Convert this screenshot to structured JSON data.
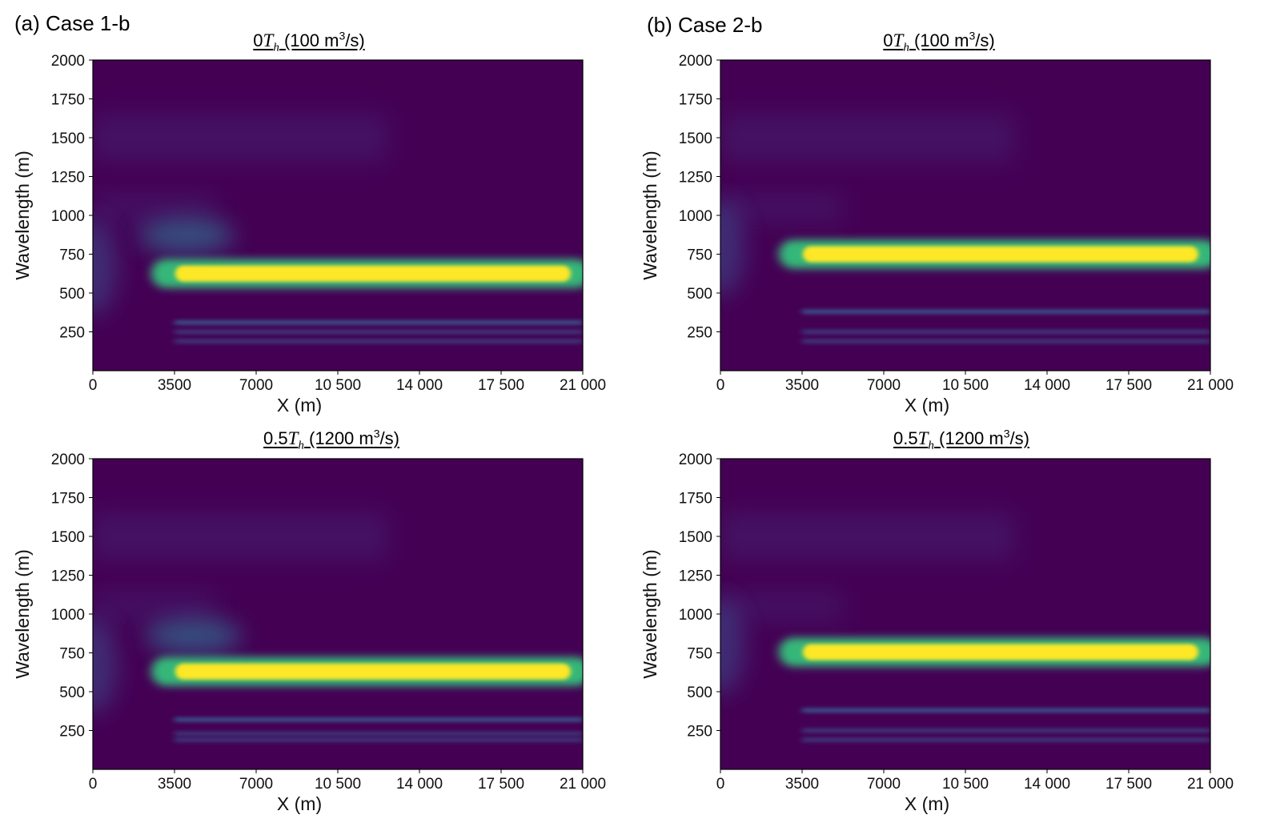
{
  "case_labels": {
    "a": "(a) Case 1-b",
    "b": "(b) Case 2-b"
  },
  "colors": {
    "background": "#440154",
    "ridge_core": "#fde725",
    "ridge_edge": "#35b779",
    "halo": "#31688e",
    "faint_band": "#3b528b"
  },
  "chart_data": [
    {
      "type": "heatmap",
      "id": "a_top",
      "title_prefix": "0",
      "title_symbol": "T",
      "title_subscript": "h",
      "title_suffix": " (100 m",
      "title_sup": "3",
      "title_end": "/s)",
      "xlabel": "X (m)",
      "ylabel": "Wavelength (m)",
      "xlim": [
        0,
        21000
      ],
      "ylim": [
        0,
        2000
      ],
      "xticks": [
        0,
        3500,
        7000,
        10500,
        14000,
        17500,
        21000
      ],
      "xtick_labels": [
        "0",
        "3500",
        "7000",
        "10 500",
        "14 000",
        "17 500",
        "21 000"
      ],
      "yticks": [
        250,
        500,
        750,
        1000,
        1250,
        1500,
        1750,
        2000
      ],
      "ytick_labels": [
        "250",
        "500",
        "750",
        "1000",
        "1250",
        "1500",
        "1750",
        "2000"
      ],
      "dominant_wavelength_m": 625,
      "ridge_x_range_m": [
        2500,
        21000
      ],
      "secondary_bands_m": [
        310,
        250,
        190
      ],
      "halo_center": {
        "x": 4000,
        "wavelength": 870
      }
    },
    {
      "type": "heatmap",
      "id": "b_top",
      "title_prefix": "0",
      "title_symbol": "T",
      "title_subscript": "h",
      "title_suffix": " (100 m",
      "title_sup": "3",
      "title_end": "/s)",
      "xlabel": "X (m)",
      "ylabel": "Wavelength (m)",
      "xlim": [
        0,
        21000
      ],
      "ylim": [
        0,
        2000
      ],
      "xticks": [
        0,
        3500,
        7000,
        10500,
        14000,
        17500,
        21000
      ],
      "xtick_labels": [
        "0",
        "3500",
        "7000",
        "10 500",
        "14 000",
        "17 500",
        "21 000"
      ],
      "yticks": [
        250,
        500,
        750,
        1000,
        1250,
        1500,
        1750,
        2000
      ],
      "ytick_labels": [
        "250",
        "500",
        "750",
        "1000",
        "1250",
        "1500",
        "1750",
        "2000"
      ],
      "dominant_wavelength_m": 750,
      "ridge_x_range_m": [
        2500,
        21000
      ],
      "secondary_bands_m": [
        380,
        250,
        190
      ],
      "halo_center": null
    },
    {
      "type": "heatmap",
      "id": "a_bottom",
      "title_prefix": "0.5",
      "title_symbol": "T",
      "title_subscript": "h",
      "title_suffix": " (1200 m",
      "title_sup": "3",
      "title_end": "/s)",
      "xlabel": "X (m)",
      "ylabel": "Wavelength (m)",
      "xlim": [
        0,
        21000
      ],
      "ylim": [
        0,
        2000
      ],
      "xticks": [
        0,
        3500,
        7000,
        10500,
        14000,
        17500,
        21000
      ],
      "xtick_labels": [
        "0",
        "3500",
        "7000",
        "10 500",
        "14 000",
        "17 500",
        "21 000"
      ],
      "yticks": [
        250,
        500,
        750,
        1000,
        1250,
        1500,
        1750,
        2000
      ],
      "ytick_labels": [
        "250",
        "500",
        "750",
        "1000",
        "1250",
        "1500",
        "1750",
        "2000"
      ],
      "dominant_wavelength_m": 630,
      "ridge_x_range_m": [
        2500,
        21000
      ],
      "secondary_bands_m": [
        320,
        230,
        190
      ],
      "halo_center": {
        "x": 4300,
        "wavelength": 860
      }
    },
    {
      "type": "heatmap",
      "id": "b_bottom",
      "title_prefix": "0.5",
      "title_symbol": "T",
      "title_subscript": "h",
      "title_suffix": " (1200 m",
      "title_sup": "3",
      "title_end": "/s)",
      "xlabel": "X (m)",
      "ylabel": "Wavelength (m)",
      "xlim": [
        0,
        21000
      ],
      "ylim": [
        0,
        2000
      ],
      "xticks": [
        0,
        3500,
        7000,
        10500,
        14000,
        17500,
        21000
      ],
      "xtick_labels": [
        "0",
        "3500",
        "7000",
        "10 500",
        "14 000",
        "17 500",
        "21 000"
      ],
      "yticks": [
        250,
        500,
        750,
        1000,
        1250,
        1500,
        1750,
        2000
      ],
      "ytick_labels": [
        "250",
        "500",
        "750",
        "1000",
        "1250",
        "1500",
        "1750",
        "2000"
      ],
      "dominant_wavelength_m": 755,
      "ridge_x_range_m": [
        2500,
        21000
      ],
      "secondary_bands_m": [
        380,
        250,
        190
      ],
      "halo_center": null
    }
  ]
}
